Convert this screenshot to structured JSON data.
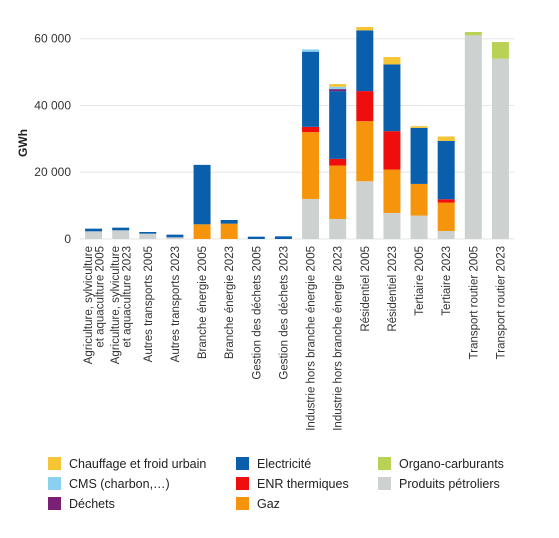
{
  "chart_data": {
    "type": "bar",
    "stacked": true,
    "ylabel": "GWh",
    "ylim": [
      0,
      65000
    ],
    "yticks": [
      0,
      20000,
      40000,
      60000
    ],
    "ytick_labels": [
      "0",
      "20 000",
      "40 000",
      "60 000"
    ],
    "grid": true,
    "legend_position": "bottom",
    "categories": [
      [
        "Agriculture, sylviculture",
        "et aquaculture 2005"
      ],
      [
        "Agriculture, sylviculture",
        "et aquaculture 2023"
      ],
      [
        "Autres transports 2005"
      ],
      [
        "Autres transports 2023"
      ],
      [
        "Branche énergie 2005"
      ],
      [
        "Branche énergie 2023"
      ],
      [
        "Gestion des déchets 2005"
      ],
      [
        "Gestion des déchets 2023"
      ],
      [
        "Industrie hors branche énergie 2005"
      ],
      [
        "Industrie hors branche énergie 2023"
      ],
      [
        "Résidentiel 2005"
      ],
      [
        "Résidentiel 2023"
      ],
      [
        "Tertiaire 2005"
      ],
      [
        "Tertiaire 2023"
      ],
      [
        "Transport routier 2005"
      ],
      [
        "Transport routier 2023"
      ]
    ],
    "series": [
      {
        "name": "Produits pétroliers",
        "color": "#cdd1d0",
        "values": [
          2300,
          2600,
          1600,
          500,
          0,
          0,
          0,
          0,
          12000,
          6000,
          17300,
          7800,
          7000,
          2400,
          61000,
          54000
        ]
      },
      {
        "name": "Gaz",
        "color": "#f6950b",
        "values": [
          0,
          0,
          0,
          0,
          4400,
          4600,
          0,
          0,
          20000,
          16000,
          18000,
          13000,
          9500,
          8500,
          0,
          0
        ]
      },
      {
        "name": "ENR thermiques",
        "color": "#f00d0d",
        "values": [
          0,
          0,
          0,
          0,
          0,
          0,
          0,
          0,
          1600,
          2000,
          9000,
          11500,
          0,
          1000,
          0,
          0
        ]
      },
      {
        "name": "Electricité",
        "color": "#0a5fac",
        "values": [
          800,
          800,
          500,
          800,
          17800,
          1100,
          700,
          800,
          22500,
          20300,
          18200,
          20000,
          16800,
          17500,
          0,
          0
        ]
      },
      {
        "name": "Déchets",
        "color": "#7a2075",
        "values": [
          0,
          0,
          0,
          0,
          0,
          0,
          0,
          0,
          0,
          600,
          0,
          0,
          0,
          0,
          0,
          0
        ]
      },
      {
        "name": "CMS (charbon,…)",
        "color": "#8cd0f0",
        "values": [
          0,
          0,
          0,
          0,
          0,
          0,
          0,
          0,
          700,
          700,
          0,
          0,
          0,
          0,
          0,
          0
        ]
      },
      {
        "name": "Chauffage et froid urbain",
        "color": "#f6c536",
        "values": [
          0,
          0,
          0,
          0,
          0,
          0,
          0,
          0,
          0,
          800,
          1000,
          2200,
          500,
          1300,
          0,
          0
        ]
      },
      {
        "name": "Organo-carburants",
        "color": "#b9d256",
        "values": [
          0,
          0,
          0,
          0,
          0,
          0,
          0,
          0,
          0,
          0,
          0,
          0,
          0,
          0,
          1000,
          5000
        ]
      }
    ],
    "legend": [
      {
        "name": "Chauffage et froid urbain",
        "color": "#f6c536"
      },
      {
        "name": "CMS (charbon,…)",
        "color": "#8cd0f0"
      },
      {
        "name": "Déchets",
        "color": "#7a2075"
      },
      {
        "name": "Electricité",
        "color": "#0a5fac"
      },
      {
        "name": "ENR thermiques",
        "color": "#f00d0d"
      },
      {
        "name": "Gaz",
        "color": "#f6950b"
      },
      {
        "name": "Organo-carburants",
        "color": "#b9d256"
      },
      {
        "name": "Produits pétroliers",
        "color": "#cdd1d0"
      }
    ]
  }
}
